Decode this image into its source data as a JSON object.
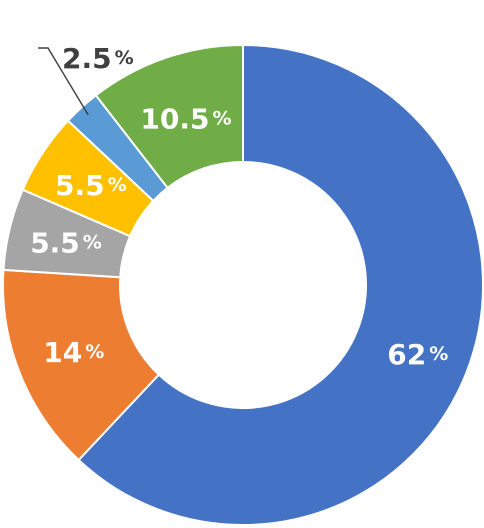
{
  "chart_data": {
    "type": "pie",
    "donut": true,
    "slices": [
      {
        "value": 62,
        "label": "62",
        "unit": "%",
        "color": "#4472C4",
        "label_color": "#ffffff"
      },
      {
        "value": 14,
        "label": "14",
        "unit": "%",
        "color": "#ED7D31",
        "label_color": "#ffffff"
      },
      {
        "value": 5.5,
        "label": "5.5",
        "unit": "%",
        "color": "#A5A5A5",
        "label_color": "#ffffff"
      },
      {
        "value": 5.5,
        "label": "5.5",
        "unit": "%",
        "color": "#FFC000",
        "label_color": "#ffffff"
      },
      {
        "value": 2.5,
        "label": "2.5",
        "unit": "%",
        "color": "#5B9BD5",
        "label_color": "#404040"
      },
      {
        "value": 10.5,
        "label": "10.5",
        "unit": "%",
        "color": "#70AD47",
        "label_color": "#ffffff"
      }
    ],
    "start_angle": "12 o'clock",
    "direction": "clockwise",
    "legend": "none"
  }
}
